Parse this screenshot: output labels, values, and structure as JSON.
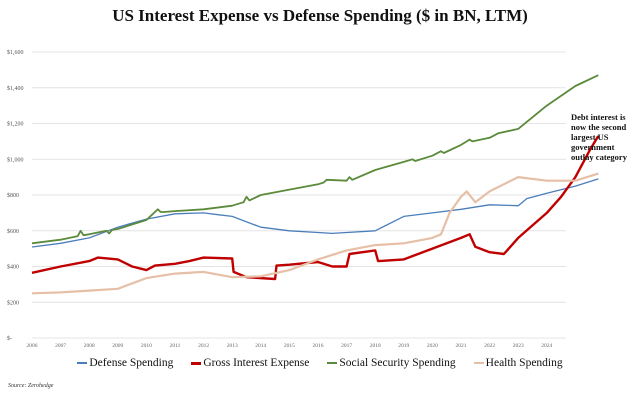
{
  "chart_data": {
    "type": "line",
    "title": "US Interest Expense vs Defense Spending ($ in BN, LTM)",
    "ylim": [
      0,
      1600
    ],
    "yticks": [
      0,
      200,
      400,
      600,
      800,
      1000,
      1200,
      1400,
      1600
    ],
    "ytick_labels": [
      "$-",
      "$200",
      "$400",
      "$600",
      "$800",
      "$1,000",
      "$1,200",
      "$1,400",
      "$1,600"
    ],
    "xlim": [
      2006,
      2025.9
    ],
    "xtick_labels": [
      "2006",
      "2007",
      "2008",
      "2009",
      "2010",
      "2011",
      "2012",
      "2013",
      "2014",
      "2015",
      "2016",
      "2017",
      "2018",
      "2019",
      "2020",
      "2021",
      "2022",
      "2023",
      "2024"
    ],
    "grid": true,
    "legend_position": "bottom",
    "annotation": "Debt interest is now the second largest US government outlay category",
    "source": "Source: Zerohedge",
    "series": [
      {
        "name": "Defense Spending",
        "color": "#4a7ebb",
        "width": 1.3,
        "x": [
          2006,
          2007,
          2008,
          2009,
          2010,
          2011,
          2012,
          2012.5,
          2013,
          2014,
          2015,
          2016,
          2016.5,
          2017,
          2018,
          2019,
          2020,
          2021,
          2022,
          2023,
          2023.3,
          2024,
          2025,
          2025.8
        ],
        "y": [
          509,
          530,
          560,
          620,
          665,
          695,
          700,
          690,
          680,
          620,
          600,
          590,
          585,
          590,
          600,
          680,
          700,
          720,
          745,
          740,
          780,
          810,
          850,
          890
        ]
      },
      {
        "name": "Gross Interest Expense",
        "color": "#c00000",
        "width": 2.4,
        "x": [
          2006,
          2007,
          2008,
          2008.3,
          2009,
          2009.5,
          2010,
          2010.3,
          2011,
          2011.5,
          2012,
          2013,
          2013.05,
          2013.5,
          2014.5,
          2014.55,
          2015,
          2016,
          2016.5,
          2017,
          2017.1,
          2018,
          2018.1,
          2019,
          2020,
          2021,
          2021.3,
          2021.5,
          2022,
          2022.5,
          2023,
          2024,
          2024.5,
          2025,
          2025.5,
          2025.8
        ],
        "y": [
          365,
          400,
          430,
          450,
          440,
          400,
          380,
          405,
          415,
          430,
          450,
          445,
          370,
          340,
          330,
          405,
          410,
          425,
          400,
          400,
          470,
          490,
          430,
          440,
          500,
          560,
          580,
          510,
          480,
          470,
          560,
          700,
          790,
          900,
          1050,
          1130
        ]
      },
      {
        "name": "Social Security Spending",
        "color": "#5b8a3a",
        "width": 1.8,
        "x": [
          2006,
          2007,
          2007.6,
          2007.7,
          2007.8,
          2008,
          2008.6,
          2008.7,
          2008.8,
          2009,
          2010,
          2010.4,
          2010.5,
          2010.6,
          2011,
          2012,
          2013,
          2013.4,
          2013.5,
          2013.6,
          2014,
          2016,
          2016.2,
          2016.3,
          2017,
          2017.1,
          2017.2,
          2018,
          2019,
          2019.3,
          2019.4,
          2020,
          2020.3,
          2020.4,
          2021,
          2021.3,
          2021.4,
          2022,
          2022.3,
          2023,
          2024,
          2025,
          2025.8
        ],
        "y": [
          530,
          550,
          570,
          600,
          575,
          580,
          600,
          585,
          605,
          610,
          660,
          720,
          705,
          705,
          710,
          720,
          740,
          760,
          790,
          770,
          800,
          860,
          870,
          885,
          880,
          900,
          885,
          940,
          985,
          1000,
          990,
          1020,
          1045,
          1035,
          1080,
          1110,
          1100,
          1120,
          1145,
          1170,
          1300,
          1410,
          1470
        ]
      },
      {
        "name": "Health Spending",
        "color": "#e6bfa7",
        "width": 2.2,
        "x": [
          2006,
          2007,
          2008,
          2009,
          2010,
          2011,
          2012,
          2013,
          2014,
          2015,
          2016,
          2017,
          2018,
          2019,
          2020,
          2020.3,
          2020.6,
          2021,
          2021.2,
          2021.5,
          2022,
          2023,
          2024,
          2025,
          2025.8
        ],
        "y": [
          250,
          255,
          265,
          275,
          335,
          360,
          370,
          340,
          345,
          380,
          440,
          490,
          520,
          530,
          560,
          580,
          700,
          790,
          820,
          760,
          820,
          900,
          880,
          880,
          920
        ]
      }
    ]
  }
}
